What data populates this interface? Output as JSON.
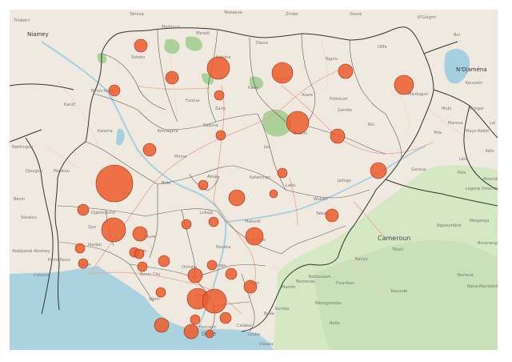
{
  "map": {
    "colors": {
      "land": "#efe9df",
      "forest": "#d4e8c4",
      "forest_dark": "#acd09a",
      "sea": "#aad3df",
      "water_body": "#a7cfe2",
      "boundary": "#333333",
      "road_major": "#e8a68f",
      "road_minor": "#f3cfa8",
      "bubble_fill": "#ed5b2d",
      "bubble_stroke": "#9c3112"
    },
    "labels": [
      {
        "id": "tillaberi",
        "text": "Tillabéri",
        "cls": "small"
      },
      {
        "id": "niamey",
        "text": "Niamey",
        "cls": "city"
      },
      {
        "id": "tahoua",
        "text": "Tahoua",
        "cls": "small"
      },
      {
        "id": "tessaoua",
        "text": "Tessaoua",
        "cls": "small"
      },
      {
        "id": "zinder",
        "text": "Zinder",
        "cls": "small"
      },
      {
        "id": "goure",
        "text": "Gouré",
        "cls": "small"
      },
      {
        "id": "nguigmi",
        "text": "N'Guigmi",
        "cls": "small"
      },
      {
        "id": "bol",
        "text": "Bol",
        "cls": "small"
      },
      {
        "id": "njamena",
        "text": "N'Djaména",
        "cls": "city"
      },
      {
        "id": "madaoua",
        "text": "Madaoua",
        "cls": "small"
      },
      {
        "id": "maradi",
        "text": "Maradi",
        "cls": "small"
      },
      {
        "id": "diffa",
        "text": "Diffa",
        "cls": "small"
      },
      {
        "id": "sokoto",
        "text": "Sokoto",
        "cls": "small"
      },
      {
        "id": "kano",
        "text": "Kano",
        "cls": "small"
      },
      {
        "id": "katsina",
        "text": "Katsina",
        "cls": "small"
      },
      {
        "id": "daura",
        "text": "Daura",
        "cls": "small"
      },
      {
        "id": "maiduguri",
        "text": "Maiduguri",
        "cls": "small"
      },
      {
        "id": "birnin_kebbi",
        "text": "Birnin Kebbi",
        "cls": "small"
      },
      {
        "id": "gusau",
        "text": "Gusau",
        "cls": "small"
      },
      {
        "id": "zaria",
        "text": "Zaria",
        "cls": "small"
      },
      {
        "id": "kaduna",
        "text": "Kaduna",
        "cls": "small"
      },
      {
        "id": "bauchi",
        "text": "Bauchi",
        "cls": "small"
      },
      {
        "id": "gombe",
        "text": "Gombe",
        "cls": "small"
      },
      {
        "id": "yola",
        "text": "Yola",
        "cls": "small"
      },
      {
        "id": "mubi",
        "text": "Mubi",
        "cls": "small"
      },
      {
        "id": "minna",
        "text": "Minna",
        "cls": "small"
      },
      {
        "id": "abuja",
        "text": "Abuja",
        "cls": "small"
      },
      {
        "id": "jos",
        "text": "Jos",
        "cls": "small"
      },
      {
        "id": "jalingo",
        "text": "Jalingo",
        "cls": "small"
      },
      {
        "id": "ilorin",
        "text": "Ilorin",
        "cls": "small"
      },
      {
        "id": "ogbomosho",
        "text": "Ogbomosho",
        "cls": "small"
      },
      {
        "id": "oyo",
        "text": "Oyo",
        "cls": "small"
      },
      {
        "id": "ibadan",
        "text": "Ibadan",
        "cls": "small"
      },
      {
        "id": "lokoja",
        "text": "Lokoja",
        "cls": "small"
      },
      {
        "id": "makurdi",
        "text": "Makurdi",
        "cls": "small"
      },
      {
        "id": "otukpo",
        "text": "Otukpo",
        "cls": "small"
      },
      {
        "id": "takum",
        "text": "Takum",
        "cls": "small"
      },
      {
        "id": "ondo",
        "text": "Ondo",
        "cls": "small"
      },
      {
        "id": "akure",
        "text": "Akure",
        "cls": "small"
      },
      {
        "id": "benin_city",
        "text": "Benin City",
        "cls": "small"
      },
      {
        "id": "warri",
        "text": "Warri",
        "cls": "small"
      },
      {
        "id": "port_harcourt",
        "text": "Port Harcourt",
        "cls": "small"
      },
      {
        "id": "calabar",
        "text": "Calabar",
        "cls": "small"
      },
      {
        "id": "lagos",
        "text": "Lagos",
        "cls": "small"
      },
      {
        "id": "porto_novo",
        "text": "Porto-Novo",
        "cls": "small"
      },
      {
        "id": "cotonou",
        "text": "Cotonou",
        "cls": "small"
      },
      {
        "id": "abomey",
        "text": "Abomey",
        "cls": "small"
      },
      {
        "id": "atakpame",
        "text": "Atakpamé",
        "cls": "small"
      },
      {
        "id": "parakou",
        "text": "Parakou",
        "cls": "small"
      },
      {
        "id": "natitingou",
        "text": "Natitingou",
        "cls": "small"
      },
      {
        "id": "kandi",
        "text": "Kandi",
        "cls": "small"
      },
      {
        "id": "benin_country",
        "text": "Bénin",
        "cls": "small"
      },
      {
        "id": "savalou",
        "text": "Savalou",
        "cls": "small"
      },
      {
        "id": "djougou",
        "text": "Djougou",
        "cls": "small"
      },
      {
        "id": "bafoussam",
        "text": "Bafoussam",
        "cls": "small"
      },
      {
        "id": "bamenda",
        "text": "Bamenda",
        "cls": "small"
      },
      {
        "id": "garoua",
        "text": "Garoua",
        "cls": "small"
      },
      {
        "id": "maroua",
        "text": "Maroua",
        "cls": "small"
      },
      {
        "id": "ngaoundere",
        "text": "Ngaoundéré",
        "cls": "small"
      },
      {
        "id": "cameroun",
        "text": "Cameroun",
        "cls": "country"
      },
      {
        "id": "bafia",
        "text": "Bafia",
        "cls": "small"
      },
      {
        "id": "douala",
        "text": "Douala",
        "cls": "small"
      },
      {
        "id": "buea",
        "text": "Buéa",
        "cls": "small"
      },
      {
        "id": "yaounde",
        "text": "Yaoundé",
        "cls": "small"
      },
      {
        "id": "bertoua",
        "text": "Bertoua",
        "cls": "small"
      },
      {
        "id": "moundou",
        "text": "Moundou",
        "cls": "small"
      },
      {
        "id": "mayo_kebbi",
        "text": "Mayo-Kebbi",
        "cls": "small"
      },
      {
        "id": "kelo",
        "text": "Kélo",
        "cls": "small"
      },
      {
        "id": "lere",
        "text": "Léré",
        "cls": "small"
      },
      {
        "id": "bongor",
        "text": "Bongor",
        "cls": "small"
      },
      {
        "id": "lai",
        "text": "Laï",
        "cls": "small"
      },
      {
        "id": "pala",
        "text": "Pala",
        "cls": "small"
      },
      {
        "id": "logone",
        "text": "Logone Oriental",
        "cls": "small"
      },
      {
        "id": "nana",
        "text": "Nana-Mambéré",
        "cls": "small"
      },
      {
        "id": "bocaranga",
        "text": "Bocaranga",
        "cls": "small"
      },
      {
        "id": "meiganga",
        "text": "Meiganga",
        "cls": "small"
      },
      {
        "id": "kousseri",
        "text": "Kousséri",
        "cls": "small"
      },
      {
        "id": "golfe",
        "text": "Golfe",
        "cls": "water"
      },
      {
        "id": "kaiama",
        "text": "Kaiama",
        "cls": "small"
      },
      {
        "id": "kontagora",
        "text": "Kontagora",
        "cls": "small"
      },
      {
        "id": "bida",
        "text": "Bida",
        "cls": "small"
      },
      {
        "id": "lafia",
        "text": "Lafia",
        "cls": "small"
      },
      {
        "id": "wukari",
        "text": "Wukari",
        "cls": "small"
      },
      {
        "id": "nsukka",
        "text": "Nsukka",
        "cls": "small"
      },
      {
        "id": "enugu",
        "text": "Enugu",
        "cls": "small"
      },
      {
        "id": "onitsha",
        "text": "Onitsha",
        "cls": "small"
      },
      {
        "id": "owerri",
        "text": "Owerri",
        "cls": "small"
      },
      {
        "id": "ikom",
        "text": "Ikom",
        "cls": "small"
      },
      {
        "id": "mamfe",
        "text": "Mamfe",
        "cls": "small"
      },
      {
        "id": "kumba",
        "text": "Kumba",
        "cls": "small"
      },
      {
        "id": "nkongsamba",
        "text": "Nkongsamba",
        "cls": "small"
      },
      {
        "id": "foumban",
        "text": "Foumban",
        "cls": "small"
      },
      {
        "id": "banyo",
        "text": "Banyo",
        "cls": "small"
      },
      {
        "id": "tibati",
        "text": "Tibati",
        "cls": "small"
      },
      {
        "id": "limbe",
        "text": "Limbe",
        "cls": "small"
      },
      {
        "id": "biu",
        "text": "Biu",
        "cls": "small"
      },
      {
        "id": "potiskum",
        "text": "Potiskum",
        "cls": "small"
      },
      {
        "id": "nguru",
        "text": "Nguru",
        "cls": "small"
      },
      {
        "id": "azare",
        "text": "Azare",
        "cls": "small"
      },
      {
        "id": "dutse",
        "text": "Dutse",
        "cls": "small"
      },
      {
        "id": "funtua",
        "text": "Funtua",
        "cls": "small"
      },
      {
        "id": "kafanchan",
        "text": "Kafanchan",
        "cls": "small"
      }
    ],
    "bubbles": [
      {
        "r": 8
      },
      {
        "r": 14
      },
      {
        "r": 7
      },
      {
        "r": 8
      },
      {
        "r": 6
      },
      {
        "r": 13
      },
      {
        "r": 9
      },
      {
        "r": 12
      },
      {
        "r": 8
      },
      {
        "r": 6
      },
      {
        "r": 23
      },
      {
        "r": 14
      },
      {
        "r": 9
      },
      {
        "r": 6
      },
      {
        "r": 10
      },
      {
        "r": 6
      },
      {
        "r": 10
      },
      {
        "r": 7
      },
      {
        "r": 6
      },
      {
        "r": 9
      },
      {
        "r": 7
      },
      {
        "r": 15
      },
      {
        "r": 6
      },
      {
        "r": 11
      },
      {
        "r": 6
      },
      {
        "r": 6
      },
      {
        "r": 9
      },
      {
        "r": 6
      },
      {
        "r": 7
      },
      {
        "r": 8
      },
      {
        "r": 6
      },
      {
        "r": 6
      },
      {
        "r": 9
      },
      {
        "r": 13
      },
      {
        "r": 15
      },
      {
        "r": 7
      },
      {
        "r": 6
      },
      {
        "r": 9
      },
      {
        "r": 8
      },
      {
        "r": 5
      },
      {
        "r": 6
      },
      {
        "r": 5
      },
      {
        "r": 6
      }
    ]
  }
}
